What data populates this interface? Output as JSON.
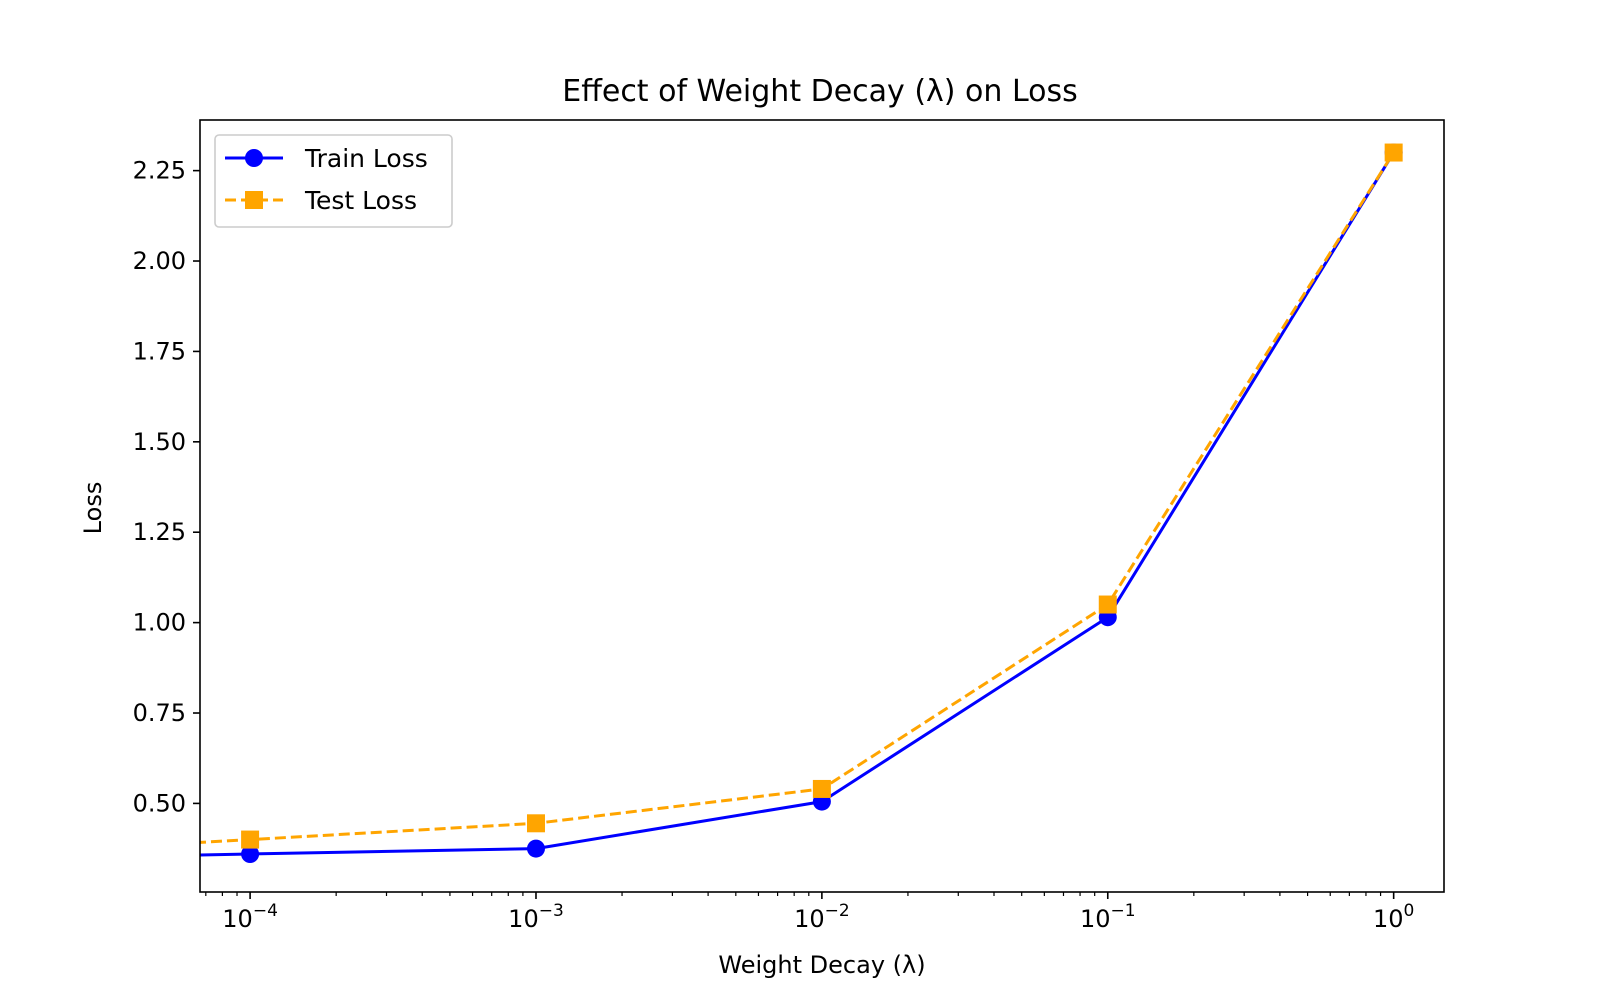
{
  "chart_data": {
    "type": "line",
    "title": "Effect of Weight Decay (λ) on Loss",
    "xlabel": "Weight Decay (λ)",
    "ylabel": "Loss",
    "x_scale": "log",
    "x": [
      0.0001,
      0.001,
      0.01,
      0.1,
      1
    ],
    "x_ticks": [
      {
        "value": 0.0001,
        "base": "10",
        "exp": "−4"
      },
      {
        "value": 0.001,
        "base": "10",
        "exp": "−3"
      },
      {
        "value": 0.01,
        "base": "10",
        "exp": "−2"
      },
      {
        "value": 0.1,
        "base": "10",
        "exp": "−1"
      },
      {
        "value": 1,
        "base": "10",
        "exp": "0"
      }
    ],
    "y_ticks": [
      {
        "value": 0.5,
        "label": "0.50"
      },
      {
        "value": 0.75,
        "label": "0.75"
      },
      {
        "value": 1.0,
        "label": "1.00"
      },
      {
        "value": 1.25,
        "label": "1.25"
      },
      {
        "value": 1.5,
        "label": "1.50"
      },
      {
        "value": 1.75,
        "label": "1.75"
      },
      {
        "value": 2.0,
        "label": "2.00"
      },
      {
        "value": 2.25,
        "label": "2.25"
      }
    ],
    "xlim": [
      6.68e-05,
      1.5
    ],
    "ylim": [
      0.255,
      2.39
    ],
    "grid": false,
    "legend_position": "upper left",
    "series": [
      {
        "name": "Train Loss",
        "values": [
          0.36,
          0.375,
          0.505,
          1.015,
          2.3
        ],
        "color": "#0000ff",
        "marker": "circle",
        "line_style": "solid"
      },
      {
        "name": "Test Loss",
        "values": [
          0.4,
          0.445,
          0.54,
          1.05,
          2.3
        ],
        "color": "#ffa500",
        "marker": "square",
        "line_style": "dashed"
      }
    ]
  }
}
